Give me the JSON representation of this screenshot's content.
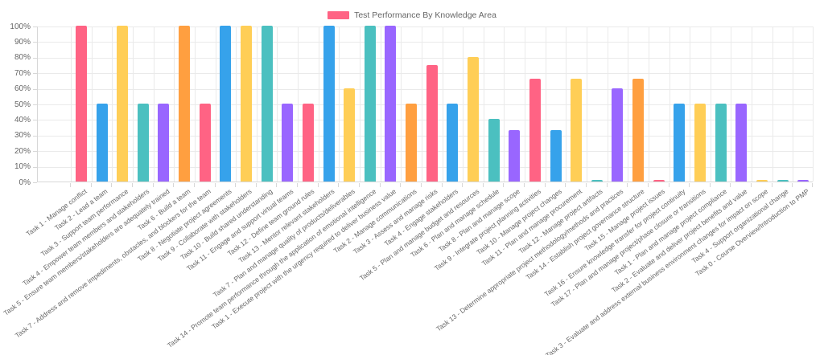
{
  "legend": {
    "label": "Test Performance By Knowledge Area",
    "swatch_color": "#FF6384"
  },
  "chart_data": {
    "type": "bar",
    "title": "Test Performance By Knowledge Area",
    "xlabel": "",
    "ylabel": "",
    "ylim": [
      0,
      100
    ],
    "grid": true,
    "legend_position": "top-center",
    "x_tick_rotation_deg": 37,
    "y_tick_labels": [
      "100%",
      "90%",
      "80%",
      "70%",
      "60%",
      "50%",
      "40%",
      "30%",
      "20%",
      "10%",
      "0%"
    ],
    "palette": {
      "pink": "#FF6384",
      "blue": "#36A2EB",
      "yellow": "#FFCE56",
      "teal": "#4BC0C0",
      "purple": "#9966FF",
      "orange": "#FF9F40"
    },
    "points": [
      {
        "label": "Task 1 - Manage conflict",
        "value": 100,
        "color": "pink"
      },
      {
        "label": "Task 2 - Lead a team",
        "value": 50,
        "color": "blue"
      },
      {
        "label": "Task 3 - Support team performance",
        "value": 100,
        "color": "yellow"
      },
      {
        "label": "Task 4 - Empower team members and stakeholders",
        "value": 50,
        "color": "teal"
      },
      {
        "label": "Task 5 - Ensure team members/stakeholders are adequately trained",
        "value": 50,
        "color": "purple"
      },
      {
        "label": "Task 6 - Build a team",
        "value": 100,
        "color": "orange"
      },
      {
        "label": "Task 7 - Address and remove impediments, obstacles, and blockers for the team",
        "value": 50,
        "color": "pink"
      },
      {
        "label": "Task 8 - Negotiate project agreements",
        "value": 100,
        "color": "blue"
      },
      {
        "label": "Task 9 - Collaborate with stakeholders",
        "value": 100,
        "color": "yellow"
      },
      {
        "label": "Task 10 - Build shared understanding",
        "value": 100,
        "color": "teal"
      },
      {
        "label": "Task 11 - Engage and support virtual teams",
        "value": 50,
        "color": "purple"
      },
      {
        "label": "Task 12 - Define team ground rules",
        "value": 50,
        "color": "pink"
      },
      {
        "label": "Task 13 - Mentor relevant stakeholders",
        "value": 100,
        "color": "blue"
      },
      {
        "label": "Task 7 - Plan and manage quality of products/deliverables",
        "value": 60,
        "color": "yellow"
      },
      {
        "label": "Task 14 - Promote team performance through the application of emotional intelligence",
        "value": 100,
        "color": "teal"
      },
      {
        "label": "Task 1 - Execute project with the urgency required to deliver business value",
        "value": 100,
        "color": "purple"
      },
      {
        "label": "Task 2 - Manage communications",
        "value": 50,
        "color": "orange"
      },
      {
        "label": "Task 3 - Assess and manage risks",
        "value": 75,
        "color": "pink"
      },
      {
        "label": "Task 4 - Engage stakeholders",
        "value": 50,
        "color": "blue"
      },
      {
        "label": "Task 5 - Plan and manage budget and resources",
        "value": 80,
        "color": "yellow"
      },
      {
        "label": "Task 6 - Plan and manage schedule",
        "value": 40,
        "color": "teal"
      },
      {
        "label": "Task 8 - Plan and manage scope",
        "value": 33,
        "color": "purple"
      },
      {
        "label": "Task 9 - Integrate project planning activities",
        "value": 66,
        "color": "pink"
      },
      {
        "label": "Task 10 - Manage project changes",
        "value": 33,
        "color": "blue"
      },
      {
        "label": "Task 11 - Plan and manage procurement",
        "value": 66,
        "color": "yellow"
      },
      {
        "label": "Task 12 - Manage project artifacts",
        "value": 1,
        "color": "teal"
      },
      {
        "label": "Task 13 - Determine appropriate project methodology/methods and practices",
        "value": 60,
        "color": "purple"
      },
      {
        "label": "Task 14 - Establish project governance structure",
        "value": 66,
        "color": "orange"
      },
      {
        "label": "Task 15 - Manage project issues",
        "value": 1,
        "color": "pink"
      },
      {
        "label": "Task 16 - Ensure knowledge transfer for project continuity",
        "value": 50,
        "color": "blue"
      },
      {
        "label": "Task 17 - Plan and manage project/phase closure or transitions",
        "value": 50,
        "color": "yellow"
      },
      {
        "label": "Task 1 - Plan and manage project compliance",
        "value": 50,
        "color": "teal"
      },
      {
        "label": "Task 2 - Evaluate and deliver project benefits and value",
        "value": 50,
        "color": "purple"
      },
      {
        "label": "Task 3 - Evaluate and address external business environment changes for impact on scope",
        "value": 1,
        "color": "yellow"
      },
      {
        "label": "Task 4 - Support organizational change",
        "value": 1,
        "color": "teal"
      },
      {
        "label": "Task 0 - Course Overview/Introduction to PMP",
        "value": 1,
        "color": "purple"
      }
    ]
  }
}
